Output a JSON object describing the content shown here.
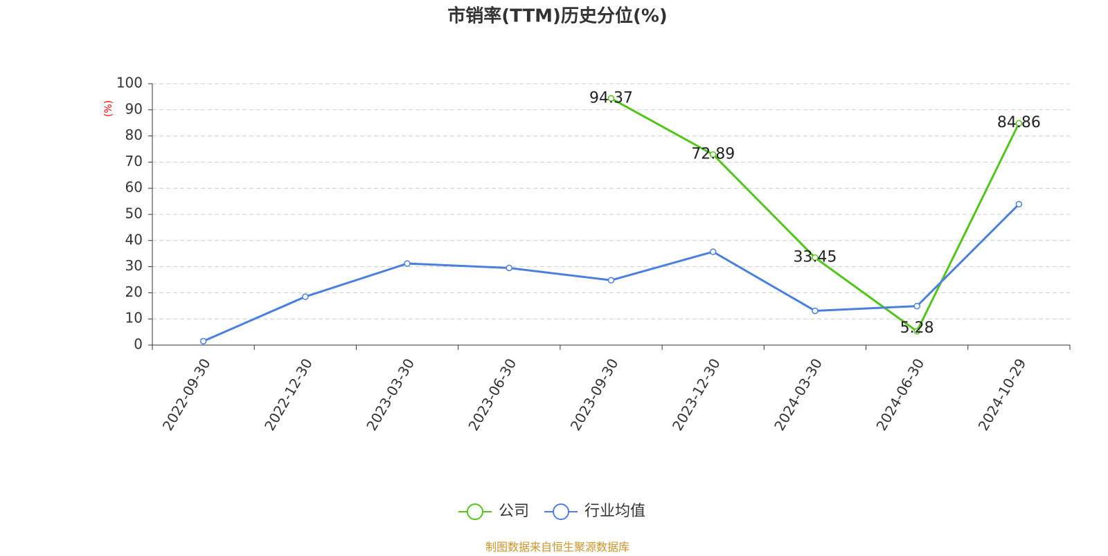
{
  "chart_data": {
    "type": "line",
    "title": "市销率(TTM)历史分位(%)",
    "y_label": "(%)",
    "y_label_color": "#ff0000",
    "categories": [
      "2022-09-30",
      "2022-12-30",
      "2023-03-30",
      "2023-06-30",
      "2023-09-30",
      "2023-12-30",
      "2024-03-30",
      "2024-06-30",
      "2024-10-29"
    ],
    "series": [
      {
        "name": "公司",
        "color": "#52c41a",
        "show_labels": true,
        "values": [
          null,
          null,
          null,
          null,
          94.37,
          72.89,
          33.45,
          5.28,
          84.86
        ]
      },
      {
        "name": "行业均值",
        "color": "#4a7fdd",
        "show_labels": false,
        "values": [
          1.5,
          18.5,
          31.2,
          29.5,
          24.8,
          35.7,
          13.1,
          14.9,
          53.9
        ]
      }
    ],
    "ylim": [
      0,
      100
    ],
    "yticks": [
      0,
      10,
      20,
      30,
      40,
      50,
      60,
      70,
      80,
      90,
      100
    ],
    "grid": true,
    "legend": "bottom",
    "footer": "制图数据来自恒生聚源数据库"
  }
}
